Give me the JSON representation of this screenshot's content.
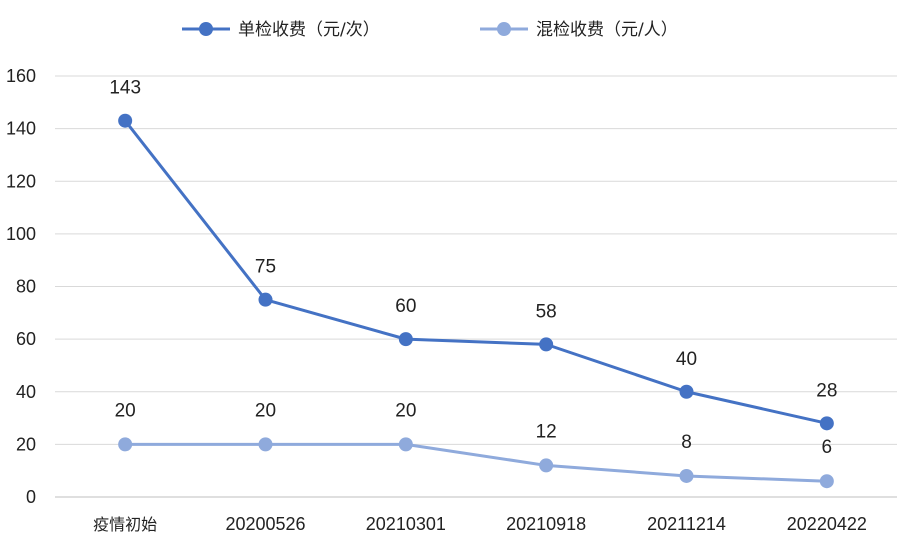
{
  "chart_data": {
    "type": "line",
    "title": "",
    "xlabel": "",
    "ylabel": "",
    "categories": [
      "疫情初始",
      "20200526",
      "20210301",
      "20210918",
      "20211214",
      "20220422"
    ],
    "ylim": [
      0,
      160
    ],
    "yticks": [
      "0",
      "20",
      "40",
      "60",
      "80",
      "100",
      "120",
      "140",
      "160"
    ],
    "grid": true,
    "legend_position": "top",
    "series": [
      {
        "name": "单检收费（元/次）",
        "values": [
          143,
          75,
          60,
          58,
          40,
          28
        ],
        "color": "#4472c4"
      },
      {
        "name": "混检收费（元/人）",
        "values": [
          20,
          20,
          20,
          12,
          8,
          6
        ],
        "color": "#8faadc"
      }
    ]
  }
}
